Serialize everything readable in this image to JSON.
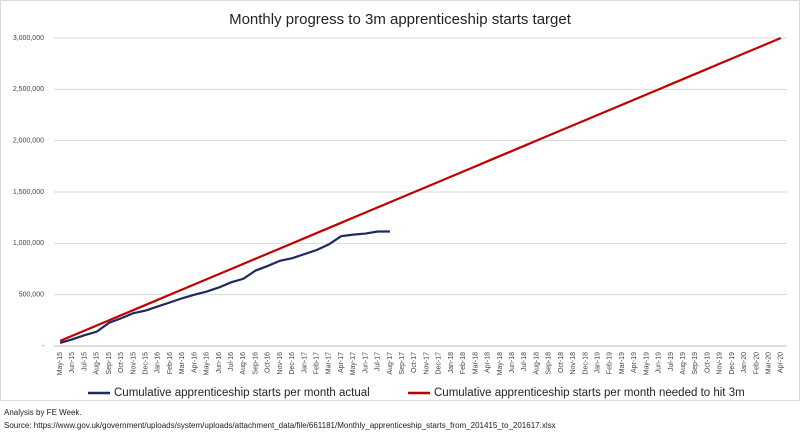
{
  "chart_data": {
    "type": "line",
    "title": "Monthly progress to 3m apprenticeship starts target",
    "categories": [
      "May-15",
      "Jun-15",
      "Jul-15",
      "Aug-15",
      "Sep-15",
      "Oct-15",
      "Nov-15",
      "Dec-15",
      "Jan-16",
      "Feb-16",
      "Mar-16",
      "Apr-16",
      "May-16",
      "Jun-16",
      "Jul-16",
      "Aug-16",
      "Sep-16",
      "Oct-16",
      "Nov-16",
      "Dec-16",
      "Jan-17",
      "Feb-17",
      "Mar-17",
      "Apr-17",
      "May-17",
      "Jun-17",
      "Jul-17",
      "Aug-17",
      "Sep-17",
      "Oct-17",
      "Nov-17",
      "Dec-17",
      "Jan-18",
      "Feb-18",
      "Mar-18",
      "Apr-18",
      "May-18",
      "Jun-18",
      "Jul-18",
      "Aug-18",
      "Sep-18",
      "Oct-18",
      "Nov-18",
      "Dec-18",
      "Jan-19",
      "Feb-19",
      "Mar-19",
      "Apr-19",
      "May-19",
      "Jun-19",
      "Jul-19",
      "Aug-19",
      "Sep-19",
      "Oct-19",
      "Nov-19",
      "Dec-19",
      "Jan-20",
      "Feb-20",
      "Mar-20",
      "Apr-20"
    ],
    "series": [
      {
        "name": "Cumulative apprenticeship starts per month actual",
        "color": "#1f2a5c",
        "values": [
          30000,
          65000,
          105000,
          140000,
          225000,
          270000,
          320000,
          345000,
          385000,
          425000,
          465000,
          500000,
          530000,
          570000,
          620000,
          655000,
          735000,
          780000,
          830000,
          855000,
          895000,
          935000,
          990000,
          1070000,
          1085000,
          1095000,
          1115000,
          1115000,
          null,
          null,
          null,
          null,
          null,
          null,
          null,
          null,
          null,
          null,
          null,
          null,
          null,
          null,
          null,
          null,
          null,
          null,
          null,
          null,
          null,
          null,
          null,
          null,
          null,
          null,
          null,
          null,
          null,
          null,
          null,
          null
        ]
      },
      {
        "name": "Cumulative apprenticeship starts per month needed to hit 3m",
        "color": "#c00000",
        "values": [
          50000,
          100000,
          150000,
          200000,
          250000,
          300000,
          350000,
          400000,
          450000,
          500000,
          550000,
          600000,
          650000,
          700000,
          750000,
          800000,
          850000,
          900000,
          950000,
          1000000,
          1050000,
          1100000,
          1150000,
          1200000,
          1250000,
          1300000,
          1350000,
          1400000,
          1450000,
          1500000,
          1550000,
          1600000,
          1650000,
          1700000,
          1750000,
          1800000,
          1850000,
          1900000,
          1950000,
          2000000,
          2050000,
          2100000,
          2150000,
          2200000,
          2250000,
          2300000,
          2350000,
          2400000,
          2450000,
          2500000,
          2550000,
          2600000,
          2650000,
          2700000,
          2750000,
          2800000,
          2850000,
          2900000,
          2950000,
          3000000
        ]
      }
    ],
    "ylim": [
      0,
      3000000
    ],
    "yticks": [
      {
        "value": 0,
        "label": "-"
      },
      {
        "value": 500000,
        "label": "500,000"
      },
      {
        "value": 1000000,
        "label": "1,000,000"
      },
      {
        "value": 1500000,
        "label": "1,500,000"
      },
      {
        "value": 2000000,
        "label": "2,000,000"
      },
      {
        "value": 2500000,
        "label": "2,500,000"
      },
      {
        "value": 3000000,
        "label": "3,000,000"
      }
    ],
    "grid": true,
    "legend": "bottom",
    "notes": [
      "Analysis by FE Week.",
      "Source: https://www.gov.uk/government/uploads/system/uploads/attachment_data/file/661181/Monthly_apprenticeship_starts_from_201415_to_201617.xlsx"
    ]
  }
}
